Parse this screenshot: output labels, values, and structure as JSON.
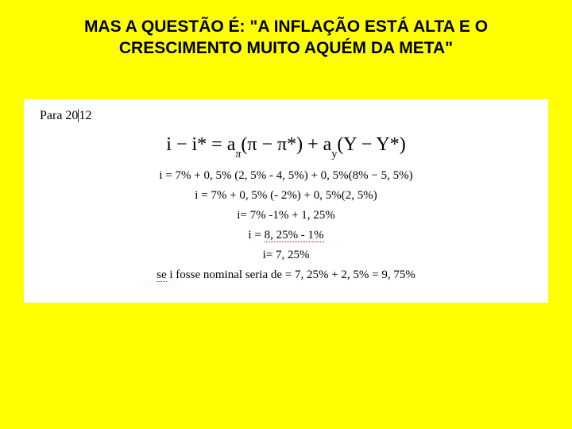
{
  "slide": {
    "background_color": "#ffff00",
    "title": "MAS A QUESTÃO É: \"A INFLAÇÃO ESTÁ ALTA E O CRESCIMENTO MUITO AQUÉM DA META\"",
    "title_fontsize": 21,
    "title_color": "#000000",
    "title_font": "Verdana"
  },
  "box": {
    "background_color": "#ffffff",
    "text_color": "#000000",
    "font": "Times New Roman",
    "para_label_pre": "Para 20",
    "para_label_post": "12",
    "main_eq": {
      "p1": "i − i* = a",
      "sub1": "π",
      "p2": "(π − π*) + a",
      "sub2": "y",
      "p3": "(Y − Y*)",
      "fontsize": 24
    },
    "lines": {
      "l1": "i = 7% + 0, 5% (2, 5% - 4, 5%) + 0, 5%(8% − 5, 5%)",
      "l2": "i = 7% + 0, 5% (- 2%) + 0, 5%(2, 5%)",
      "l3": "i= 7% -1% + 1, 25%",
      "l4a": "i = ",
      "l4b": "8, 25% - 1%",
      "l5": "i= 7, 25%",
      "l6a": "se",
      "l6b": " i fosse nominal seria de = 7, 25% + 2, 5% = 9, 75%"
    },
    "calc_fontsize": 15,
    "squiggle_color": "#cc0000"
  }
}
